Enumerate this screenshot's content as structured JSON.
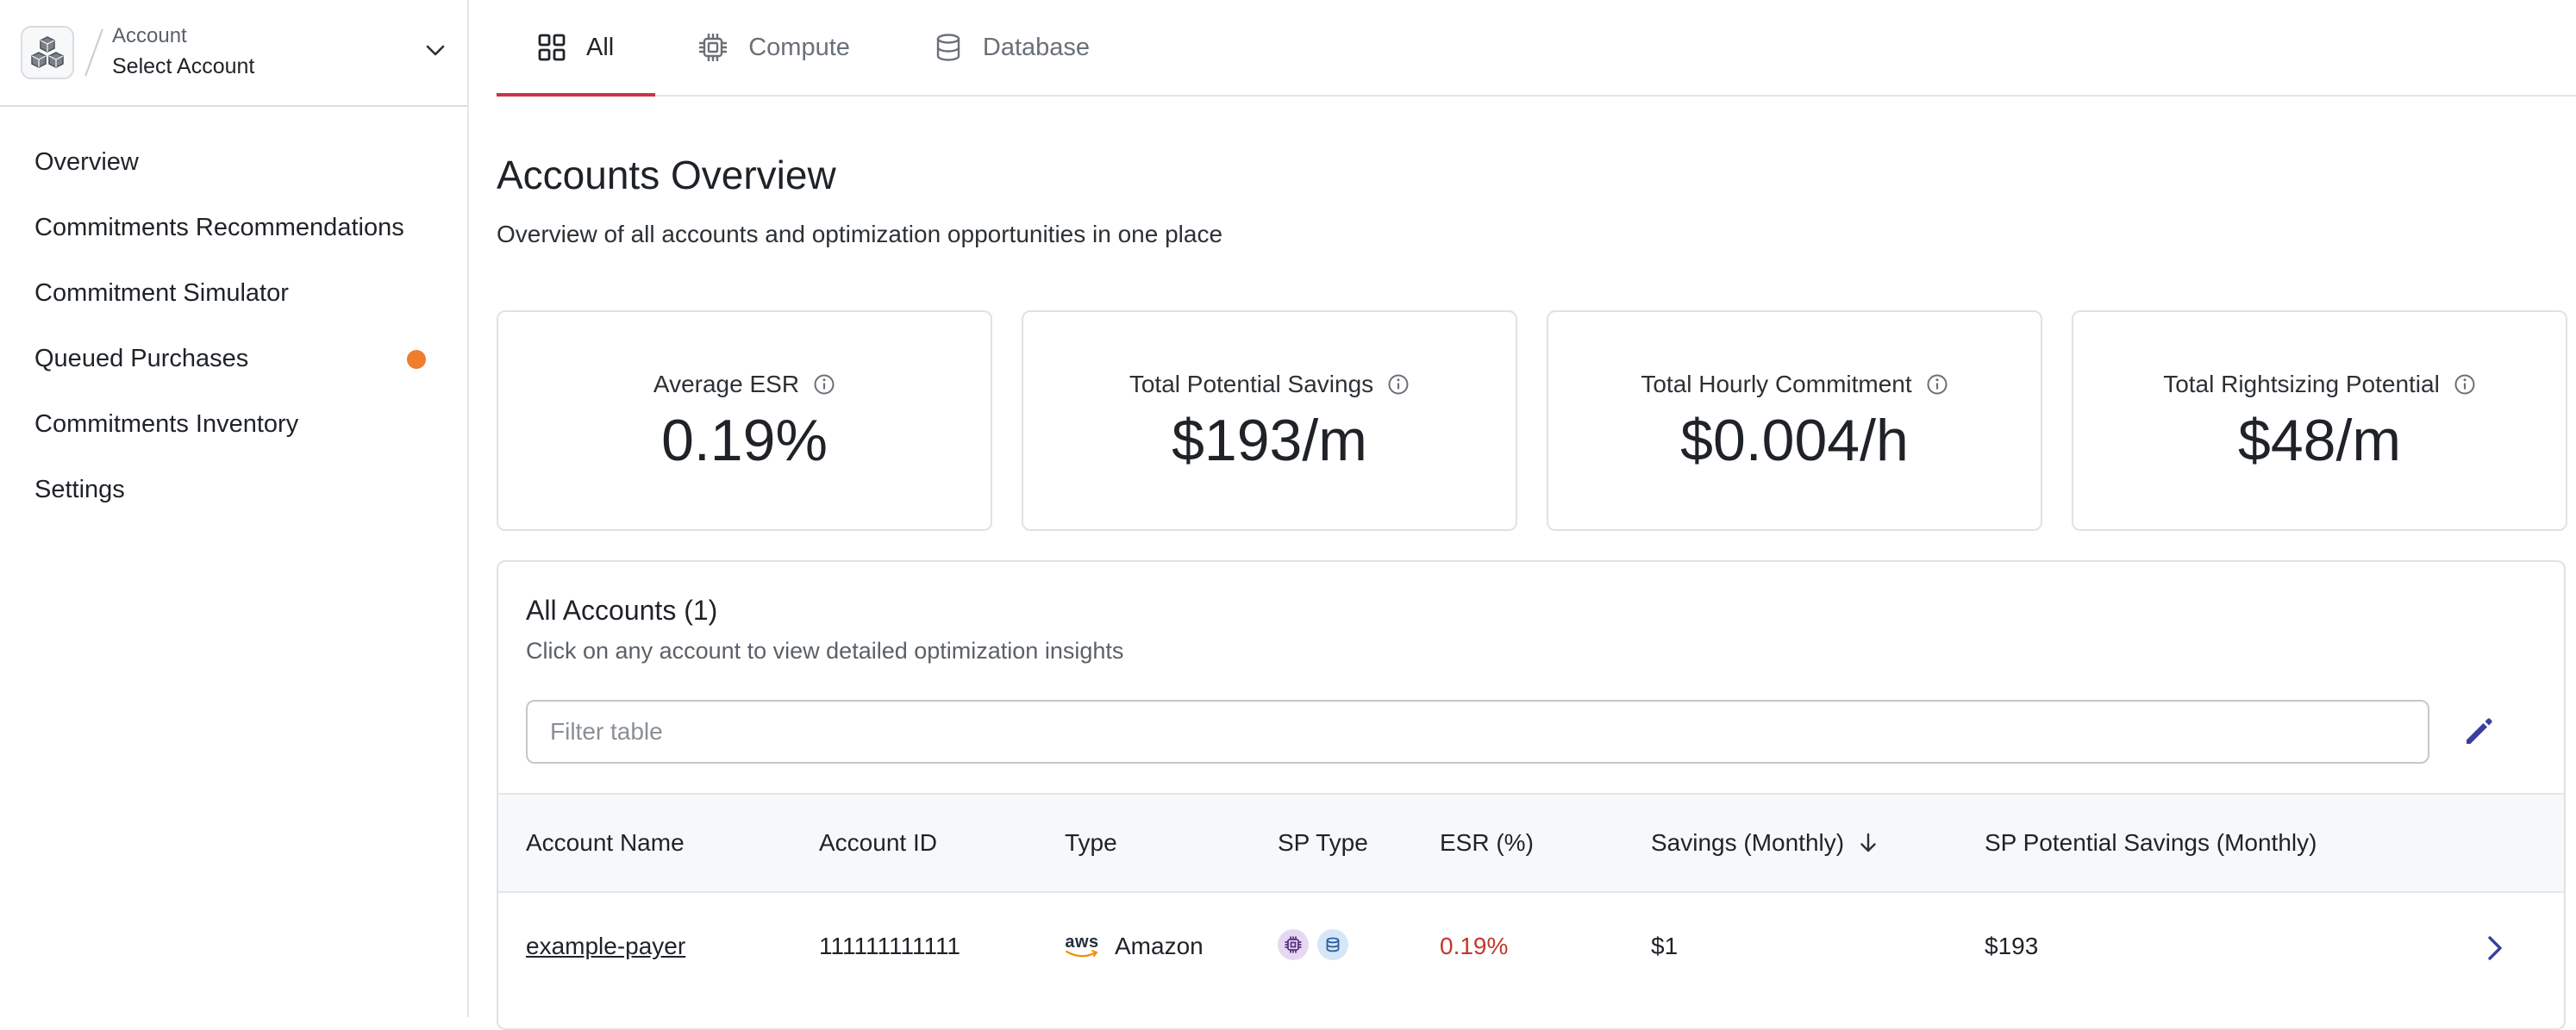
{
  "sidebar": {
    "account_label": "Account",
    "account_value": "Select Account",
    "items": [
      {
        "label": "Overview"
      },
      {
        "label": "Commitments Recommendations"
      },
      {
        "label": "Commitment Simulator"
      },
      {
        "label": "Queued Purchases",
        "badge_color": "#ef7d2e"
      },
      {
        "label": "Commitments Inventory"
      },
      {
        "label": "Settings"
      }
    ]
  },
  "tabs": [
    {
      "label": "All",
      "icon": "grid-icon",
      "active": true
    },
    {
      "label": "Compute",
      "icon": "cpu-chip-icon",
      "active": false
    },
    {
      "label": "Database",
      "icon": "database-icon",
      "active": false
    }
  ],
  "page": {
    "title": "Accounts Overview",
    "subtitle": "Overview of all accounts and optimization opportunities in one place"
  },
  "cards": [
    {
      "label": "Average ESR",
      "value": "0.19%"
    },
    {
      "label": "Total Potential Savings",
      "value": "$193/m"
    },
    {
      "label": "Total Hourly Commitment",
      "value": "$0.004/h"
    },
    {
      "label": "Total Rightsizing Potential",
      "value": "$48/m"
    }
  ],
  "accounts_table": {
    "title": "All Accounts (1)",
    "subtitle": "Click on any account to view detailed optimization insights",
    "filter_placeholder": "Filter table",
    "columns": [
      "Account Name",
      "Account ID",
      "Type",
      "SP Type",
      "ESR (%)",
      "Savings (Monthly)",
      "SP Potential Savings (Monthly)"
    ],
    "sort_column": "Savings (Monthly)",
    "sort_direction": "descending",
    "rows": [
      {
        "account_name": "example-payer",
        "account_id": "111111111111",
        "type_logo_text": "aws",
        "type": "Amazon",
        "sp_types": [
          "compute",
          "database"
        ],
        "esr": "0.19%",
        "savings_monthly": "$1",
        "sp_potential_savings_monthly": "$193"
      }
    ]
  },
  "colors": {
    "accent_tab": "#c8344a",
    "esr_text": "#c0392b",
    "icon_blue": "#3b3f9c",
    "queued_badge": "#ef7d2e"
  }
}
